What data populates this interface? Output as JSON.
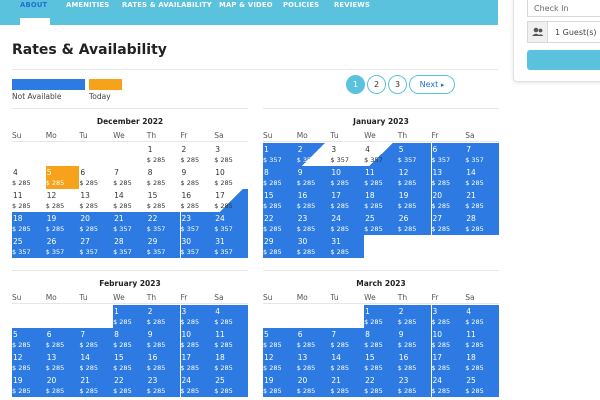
{
  "nav": {
    "tabs": [
      "ABOUT",
      "AMENITIES",
      "RATES & AVAILABILITY",
      "MAP & VIDEO",
      "POLICIES",
      "REVIEWS"
    ],
    "active": "ABOUT"
  },
  "booking": {
    "checkin_placeholder": "Check In",
    "guests_label": "1 Guest(s)",
    "guests_icon": "users-icon",
    "search_icon": "search-icon"
  },
  "page_title": "Rates & Availability",
  "legend": {
    "not_available": "Not Available",
    "today": "Today",
    "colors": {
      "not_available": "#2d7be2",
      "today": "#f7a21b",
      "accent": "#5bc2de"
    }
  },
  "pagination": {
    "pages": [
      "1",
      "2",
      "3"
    ],
    "active_page": "1",
    "next_label": "Next"
  },
  "weekdays": [
    "Su",
    "Mo",
    "Tu",
    "We",
    "Th",
    "Fr",
    "Sa"
  ],
  "months": [
    {
      "title": "December 2022",
      "weeks": [
        [
          null,
          null,
          null,
          null,
          {
            "day": "1",
            "price": "$ 285"
          },
          {
            "day": "2",
            "price": "$ 285"
          },
          {
            "day": "3",
            "price": "$ 285"
          }
        ],
        [
          {
            "day": "4",
            "price": "$ 285"
          },
          {
            "day": "5",
            "price": "$ 285",
            "state": "today"
          },
          {
            "day": "6",
            "price": "$ 285"
          },
          {
            "day": "7",
            "price": "$ 285"
          },
          {
            "day": "8",
            "price": "$ 285"
          },
          {
            "day": "9",
            "price": "$ 285"
          },
          {
            "day": "10",
            "price": "$ 285"
          }
        ],
        [
          {
            "day": "11",
            "price": "$ 285"
          },
          {
            "day": "12",
            "price": "$ 285"
          },
          {
            "day": "13",
            "price": "$ 285"
          },
          {
            "day": "14",
            "price": "$ 285"
          },
          {
            "day": "15",
            "price": "$ 285"
          },
          {
            "day": "16",
            "price": "$ 285"
          },
          {
            "day": "17",
            "price": "$ 285",
            "state": "half"
          }
        ],
        [
          {
            "day": "18",
            "price": "$ 285",
            "state": "na"
          },
          {
            "day": "19",
            "price": "$ 285",
            "state": "na"
          },
          {
            "day": "20",
            "price": "$ 285",
            "state": "na"
          },
          {
            "day": "21",
            "price": "$ 357",
            "state": "na"
          },
          {
            "day": "22",
            "price": "$ 357",
            "state": "na"
          },
          {
            "day": "23",
            "price": "$ 357",
            "state": "na"
          },
          {
            "day": "24",
            "price": "$ 357",
            "state": "na"
          }
        ],
        [
          {
            "day": "25",
            "price": "$ 357",
            "state": "na"
          },
          {
            "day": "26",
            "price": "$ 357",
            "state": "na"
          },
          {
            "day": "27",
            "price": "$ 357",
            "state": "na"
          },
          {
            "day": "28",
            "price": "$ 357",
            "state": "na"
          },
          {
            "day": "29",
            "price": "$ 357",
            "state": "na"
          },
          {
            "day": "30",
            "price": "$ 357",
            "state": "na"
          },
          {
            "day": "31",
            "price": "$ 357",
            "state": "na"
          }
        ]
      ]
    },
    {
      "title": "January 2023",
      "weeks": [
        [
          {
            "day": "1",
            "price": "$ 357",
            "state": "na"
          },
          {
            "day": "2",
            "price": "$ 357",
            "state": "halfout"
          },
          {
            "day": "3",
            "price": "$ 357"
          },
          {
            "day": "4",
            "price": "$ 357",
            "state": "half"
          },
          {
            "day": "5",
            "price": "$ 357",
            "state": "na"
          },
          {
            "day": "6",
            "price": "$ 357",
            "state": "na"
          },
          {
            "day": "7",
            "price": "$ 357",
            "state": "na"
          }
        ],
        [
          {
            "day": "8",
            "price": "$ 285",
            "state": "na"
          },
          {
            "day": "9",
            "price": "$ 285",
            "state": "na"
          },
          {
            "day": "10",
            "price": "$ 285",
            "state": "na"
          },
          {
            "day": "11",
            "price": "$ 285",
            "state": "na"
          },
          {
            "day": "12",
            "price": "$ 285",
            "state": "na"
          },
          {
            "day": "13",
            "price": "$ 285",
            "state": "na"
          },
          {
            "day": "14",
            "price": "$ 285",
            "state": "na"
          }
        ],
        [
          {
            "day": "15",
            "price": "$ 285",
            "state": "na"
          },
          {
            "day": "16",
            "price": "$ 285",
            "state": "na"
          },
          {
            "day": "17",
            "price": "$ 285",
            "state": "na"
          },
          {
            "day": "18",
            "price": "$ 285",
            "state": "na"
          },
          {
            "day": "19",
            "price": "$ 285",
            "state": "na"
          },
          {
            "day": "20",
            "price": "$ 285",
            "state": "na"
          },
          {
            "day": "21",
            "price": "$ 285",
            "state": "na"
          }
        ],
        [
          {
            "day": "22",
            "price": "$ 285",
            "state": "na"
          },
          {
            "day": "23",
            "price": "$ 285",
            "state": "na"
          },
          {
            "day": "24",
            "price": "$ 285",
            "state": "na"
          },
          {
            "day": "25",
            "price": "$ 285",
            "state": "na"
          },
          {
            "day": "26",
            "price": "$ 285",
            "state": "na"
          },
          {
            "day": "27",
            "price": "$ 285",
            "state": "na"
          },
          {
            "day": "28",
            "price": "$ 285",
            "state": "na"
          }
        ],
        [
          {
            "day": "29",
            "price": "$ 285",
            "state": "na"
          },
          {
            "day": "30",
            "price": "$ 285",
            "state": "na"
          },
          {
            "day": "31",
            "price": "$ 285",
            "state": "na"
          },
          null,
          null,
          null,
          null
        ]
      ]
    },
    {
      "title": "February 2023",
      "weeks": [
        [
          null,
          null,
          null,
          {
            "day": "1",
            "price": "$ 285",
            "state": "na"
          },
          {
            "day": "2",
            "price": "$ 285",
            "state": "na"
          },
          {
            "day": "3",
            "price": "$ 285",
            "state": "na"
          },
          {
            "day": "4",
            "price": "$ 285",
            "state": "na"
          }
        ],
        [
          {
            "day": "5",
            "price": "$ 285",
            "state": "na"
          },
          {
            "day": "6",
            "price": "$ 285",
            "state": "na"
          },
          {
            "day": "7",
            "price": "$ 285",
            "state": "na"
          },
          {
            "day": "8",
            "price": "$ 285",
            "state": "na"
          },
          {
            "day": "9",
            "price": "$ 285",
            "state": "na"
          },
          {
            "day": "10",
            "price": "$ 285",
            "state": "na"
          },
          {
            "day": "11",
            "price": "$ 285",
            "state": "na"
          }
        ],
        [
          {
            "day": "12",
            "price": "$ 285",
            "state": "na"
          },
          {
            "day": "13",
            "price": "$ 285",
            "state": "na"
          },
          {
            "day": "14",
            "price": "$ 285",
            "state": "na"
          },
          {
            "day": "15",
            "price": "$ 285",
            "state": "na"
          },
          {
            "day": "16",
            "price": "$ 285",
            "state": "na"
          },
          {
            "day": "17",
            "price": "$ 285",
            "state": "na"
          },
          {
            "day": "18",
            "price": "$ 285",
            "state": "na"
          }
        ],
        [
          {
            "day": "19",
            "price": "$ 285",
            "state": "na"
          },
          {
            "day": "20",
            "price": "$ 285",
            "state": "na"
          },
          {
            "day": "21",
            "price": "$ 285",
            "state": "na"
          },
          {
            "day": "22",
            "price": "$ 285",
            "state": "na"
          },
          {
            "day": "23",
            "price": "$ 285",
            "state": "na"
          },
          {
            "day": "24",
            "price": "$ 285",
            "state": "na"
          },
          {
            "day": "25",
            "price": "$ 285",
            "state": "na"
          }
        ]
      ]
    },
    {
      "title": "March 2023",
      "weeks": [
        [
          null,
          null,
          null,
          {
            "day": "1",
            "price": "$ 285",
            "state": "na"
          },
          {
            "day": "2",
            "price": "$ 285",
            "state": "na"
          },
          {
            "day": "3",
            "price": "$ 285",
            "state": "na"
          },
          {
            "day": "4",
            "price": "$ 285",
            "state": "na"
          }
        ],
        [
          {
            "day": "5",
            "price": "$ 285",
            "state": "na"
          },
          {
            "day": "6",
            "price": "$ 285",
            "state": "na"
          },
          {
            "day": "7",
            "price": "$ 285",
            "state": "na"
          },
          {
            "day": "8",
            "price": "$ 285",
            "state": "na"
          },
          {
            "day": "9",
            "price": "$ 285",
            "state": "na"
          },
          {
            "day": "10",
            "price": "$ 285",
            "state": "na"
          },
          {
            "day": "11",
            "price": "$ 285",
            "state": "na"
          }
        ],
        [
          {
            "day": "12",
            "price": "$ 285",
            "state": "na"
          },
          {
            "day": "13",
            "price": "$ 285",
            "state": "na"
          },
          {
            "day": "14",
            "price": "$ 285",
            "state": "na"
          },
          {
            "day": "15",
            "price": "$ 285",
            "state": "na"
          },
          {
            "day": "16",
            "price": "$ 285",
            "state": "na"
          },
          {
            "day": "17",
            "price": "$ 285",
            "state": "na"
          },
          {
            "day": "18",
            "price": "$ 285",
            "state": "na"
          }
        ],
        [
          {
            "day": "19",
            "price": "$ 285",
            "state": "na"
          },
          {
            "day": "20",
            "price": "$ 285",
            "state": "na"
          },
          {
            "day": "21",
            "price": "$ 285",
            "state": "na"
          },
          {
            "day": "22",
            "price": "$ 285",
            "state": "na"
          },
          {
            "day": "23",
            "price": "$ 285",
            "state": "na"
          },
          {
            "day": "24",
            "price": "$ 285",
            "state": "na"
          },
          {
            "day": "25",
            "price": "$ 285",
            "state": "na"
          }
        ]
      ]
    }
  ]
}
